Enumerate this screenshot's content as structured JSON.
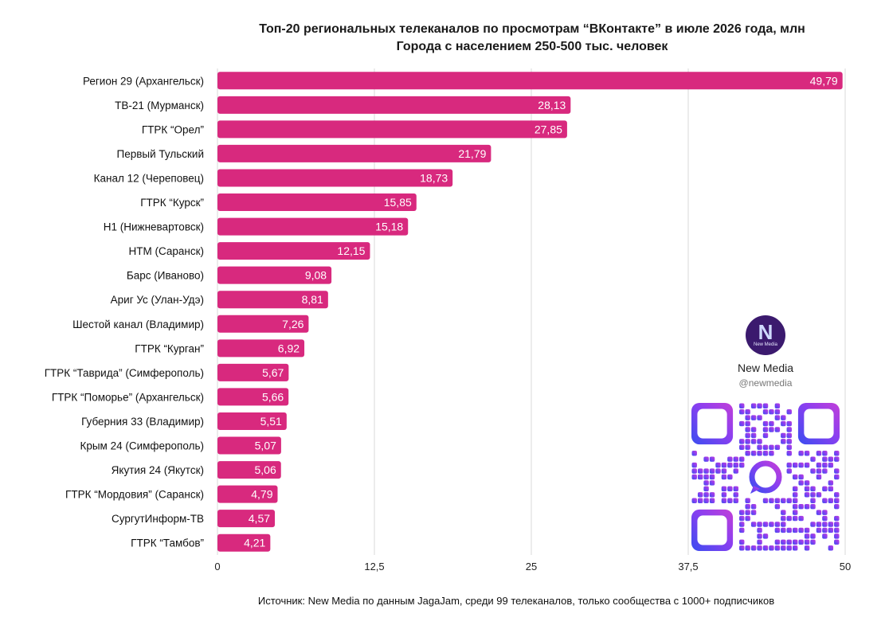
{
  "chart_data": {
    "type": "bar",
    "orientation": "horizontal",
    "title": "Топ-20 региональных телеканалов по просмотрам “ВКонтакте” в июле 2026 года, млн",
    "subtitle": "Города с населением 250-500 тыс. человек",
    "categories": [
      "Регион 29 (Архангельск)",
      "ТВ-21 (Мурманск)",
      "ГТРК “Орел”",
      "Первый Тульский",
      "Канал 12 (Череповец)",
      "ГТРК “Курск”",
      "Н1 (Нижневартовск)",
      "НТМ (Саранск)",
      "Барс (Иваново)",
      "Ариг Ус (Улан-Удэ)",
      "Шестой канал (Владимир)",
      "ГТРК “Курган”",
      "ГТРК “Таврида” (Симферополь)",
      "ГТРК “Поморье” (Архангельск)",
      "Губерния 33 (Владимир)",
      "Крым 24 (Симферополь)",
      "Якутия 24 (Якутск)",
      "ГТРК “Мордовия” (Саранск)",
      "СургутИнформ-ТВ",
      "ГТРК “Тамбов”"
    ],
    "values": [
      49.79,
      28.13,
      27.85,
      21.79,
      18.73,
      15.85,
      15.18,
      12.15,
      9.08,
      8.81,
      7.26,
      6.92,
      5.67,
      5.66,
      5.51,
      5.07,
      5.06,
      4.79,
      4.57,
      4.21
    ],
    "value_labels": [
      "49,79",
      "28,13",
      "27,85",
      "21,79",
      "18,73",
      "15,85",
      "15,18",
      "12,15",
      "9,08",
      "8,81",
      "7,26",
      "6,92",
      "5,67",
      "5,66",
      "5,51",
      "5,07",
      "5,06",
      "4,79",
      "4,57",
      "4,21"
    ],
    "xlim": [
      0,
      50
    ],
    "xticks": [
      0,
      12.5,
      25,
      37.5,
      50
    ],
    "xtick_labels": [
      "0",
      "12,5",
      "25",
      "37,5",
      "50"
    ],
    "grid": "vertical",
    "bar_color": "#d8297e",
    "grid_color": "#d9d9d9",
    "xlabel": "",
    "ylabel": ""
  },
  "source_text": "Источник: New Media по данным JagaJam, среди 99 телеканалов, только сообщества с 1000+ подписчиков",
  "brand": {
    "logo_glyph": "N",
    "logo_small": "New Media",
    "name": "New Media",
    "handle": "@newmedia",
    "logo_color": "#3b1a6e",
    "qr_colors": [
      "#3a4df0",
      "#8a3ff0",
      "#c23fd8"
    ]
  }
}
